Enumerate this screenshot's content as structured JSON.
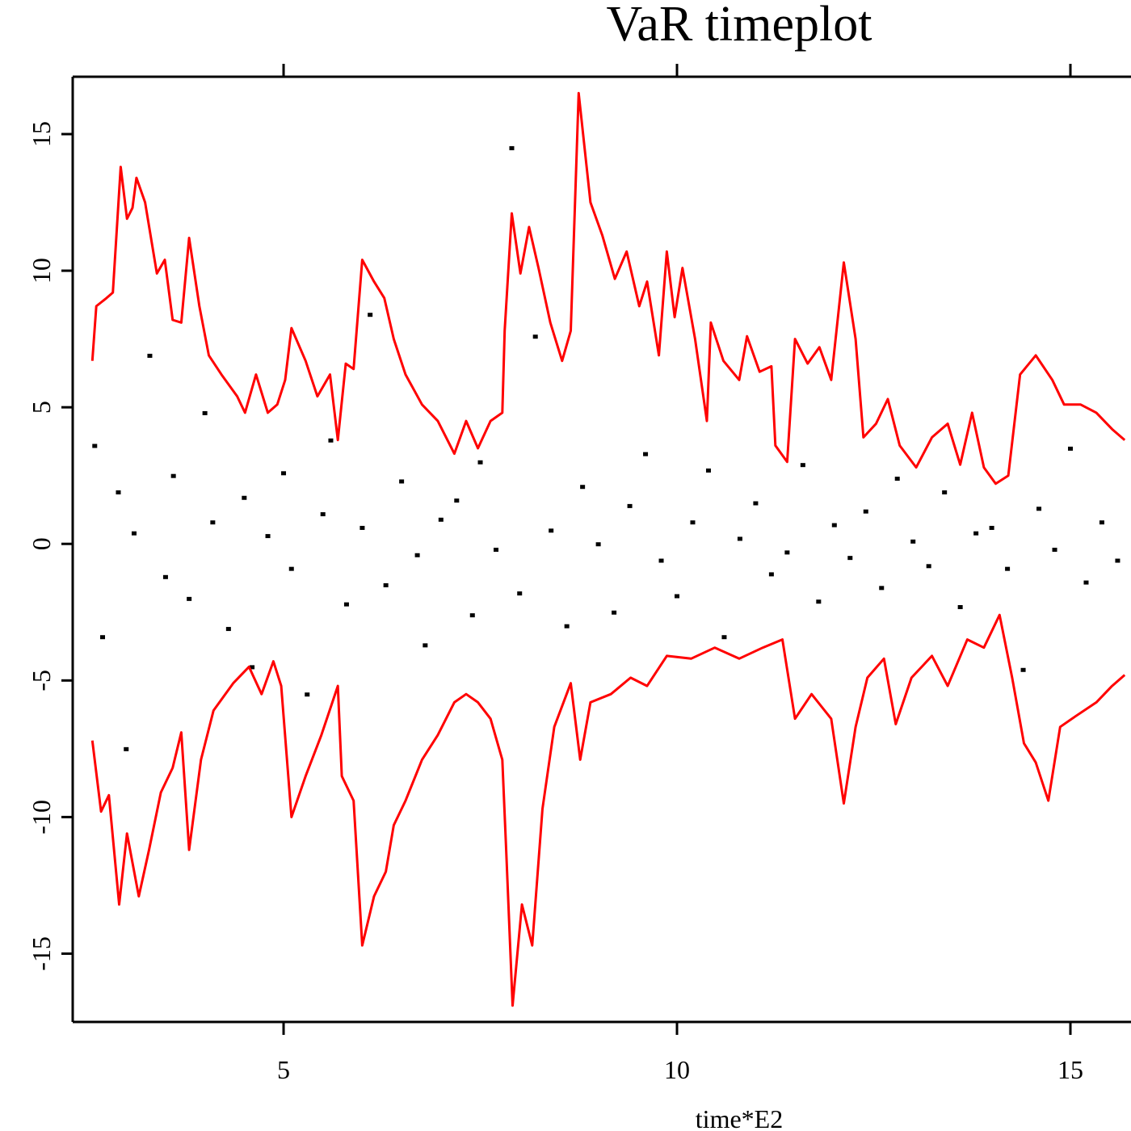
{
  "chart_data": {
    "type": "line",
    "title": "VaR timeplot",
    "xlabel": "time*E2",
    "xlim": [
      2.32,
      15.77
    ],
    "ylim": [
      -17.5,
      17.1
    ],
    "xticks": [
      5,
      10,
      15
    ],
    "yticks": [
      -15,
      -10,
      -5,
      0,
      5,
      10,
      15
    ],
    "series": [
      {
        "color": "#ff0000",
        "x": [
          2.57,
          2.62,
          2.75,
          2.83,
          2.93,
          3.01,
          3.08,
          3.13,
          3.24,
          3.39,
          3.49,
          3.59,
          3.7,
          3.8,
          3.93,
          4.05,
          4.21,
          4.41,
          4.51,
          4.65,
          4.8,
          4.92,
          5.02,
          5.1,
          5.28,
          5.43,
          5.59,
          5.69,
          5.79,
          5.89,
          6.0,
          6.15,
          6.28,
          6.4,
          6.55,
          6.76,
          6.96,
          7.17,
          7.32,
          7.47,
          7.63,
          7.78,
          7.81,
          7.9,
          8.01,
          8.12,
          8.24,
          8.39,
          8.54,
          8.65,
          8.75,
          8.9,
          9.05,
          9.21,
          9.36,
          9.52,
          9.62,
          9.77,
          9.87,
          9.97,
          10.07,
          10.23,
          10.38,
          10.43,
          10.59,
          10.79,
          10.89,
          11.05,
          11.2,
          11.25,
          11.4,
          11.5,
          11.66,
          11.81,
          11.96,
          12.12,
          12.27,
          12.37,
          12.53,
          12.68,
          12.83,
          13.04,
          13.24,
          13.44,
          13.6,
          13.75,
          13.9,
          14.05,
          14.21,
          14.36,
          14.56,
          14.77,
          14.92,
          15.13,
          15.33,
          15.53,
          15.69
        ],
        "values": [
          6.7,
          8.7,
          9.0,
          9.2,
          13.8,
          11.9,
          12.3,
          13.4,
          12.5,
          9.9,
          10.4,
          8.2,
          8.1,
          11.2,
          8.7,
          6.9,
          6.2,
          5.4,
          4.8,
          6.2,
          4.8,
          5.1,
          6.0,
          7.9,
          6.7,
          5.4,
          6.2,
          3.8,
          6.6,
          6.4,
          10.4,
          9.6,
          9.0,
          7.5,
          6.2,
          5.1,
          4.5,
          3.3,
          4.5,
          3.5,
          4.5,
          4.8,
          7.8,
          12.1,
          9.9,
          11.6,
          10.1,
          8.1,
          6.7,
          7.8,
          16.5,
          12.5,
          11.3,
          9.7,
          10.7,
          8.7,
          9.6,
          6.9,
          10.7,
          8.3,
          10.1,
          7.5,
          4.5,
          8.1,
          6.7,
          6.0,
          7.6,
          6.3,
          6.5,
          3.6,
          3.0,
          7.5,
          6.6,
          7.2,
          6.0,
          10.3,
          7.5,
          3.9,
          4.4,
          5.3,
          3.6,
          2.8,
          3.9,
          4.4,
          2.9,
          4.8,
          2.8,
          2.2,
          2.5,
          6.2,
          6.9,
          6.0,
          5.1,
          5.1,
          4.8,
          4.2,
          3.8
        ]
      },
      {
        "color": "#ff0000",
        "x": [
          2.57,
          2.68,
          2.78,
          2.91,
          3.01,
          3.16,
          3.29,
          3.44,
          3.59,
          3.7,
          3.8,
          3.95,
          4.11,
          4.36,
          4.56,
          4.72,
          4.87,
          4.97,
          5.1,
          5.28,
          5.48,
          5.69,
          5.74,
          5.89,
          6.0,
          6.15,
          6.3,
          6.4,
          6.55,
          6.76,
          6.96,
          7.17,
          7.32,
          7.47,
          7.63,
          7.78,
          7.83,
          7.91,
          8.03,
          8.16,
          8.29,
          8.44,
          8.65,
          8.77,
          8.9,
          9.16,
          9.41,
          9.62,
          9.87,
          10.18,
          10.48,
          10.79,
          11.09,
          11.34,
          11.5,
          11.71,
          11.96,
          12.12,
          12.27,
          12.42,
          12.63,
          12.78,
          12.98,
          13.24,
          13.44,
          13.69,
          13.9,
          14.1,
          14.26,
          14.41,
          14.56,
          14.72,
          14.87,
          15.07,
          15.33,
          15.53,
          15.69
        ],
        "values": [
          -7.2,
          -9.8,
          -9.2,
          -13.2,
          -10.6,
          -12.9,
          -11.2,
          -9.1,
          -8.2,
          -6.9,
          -11.2,
          -7.9,
          -6.1,
          -5.1,
          -4.5,
          -5.5,
          -4.3,
          -5.2,
          -10.0,
          -8.5,
          -7.0,
          -5.2,
          -8.5,
          -9.4,
          -14.7,
          -12.9,
          -12.0,
          -10.3,
          -9.4,
          -7.9,
          -7.0,
          -5.8,
          -5.5,
          -5.8,
          -6.4,
          -7.9,
          -11.3,
          -16.9,
          -13.2,
          -14.7,
          -9.7,
          -6.7,
          -5.1,
          -7.9,
          -5.8,
          -5.5,
          -4.9,
          -5.2,
          -4.1,
          -4.2,
          -3.8,
          -4.2,
          -3.8,
          -3.5,
          -6.4,
          -5.5,
          -6.4,
          -9.5,
          -6.7,
          -4.9,
          -4.2,
          -6.6,
          -4.9,
          -4.1,
          -5.2,
          -3.5,
          -3.8,
          -2.6,
          -4.9,
          -7.3,
          -8.0,
          -9.4,
          -6.7,
          -6.3,
          -5.8,
          -5.2,
          -4.8
        ]
      }
    ],
    "points": {
      "color": "#000000",
      "x": [
        2.6,
        2.7,
        2.9,
        3.0,
        3.1,
        3.3,
        3.5,
        3.6,
        3.8,
        4.0,
        4.1,
        4.3,
        4.5,
        4.6,
        4.8,
        5.0,
        5.1,
        5.3,
        5.5,
        5.6,
        5.8,
        6.0,
        6.1,
        6.3,
        6.5,
        6.7,
        6.8,
        7.0,
        7.2,
        7.4,
        7.5,
        7.7,
        7.9,
        8.0,
        8.2,
        8.4,
        8.6,
        8.8,
        9.0,
        9.2,
        9.4,
        9.6,
        9.8,
        10.0,
        10.2,
        10.4,
        10.6,
        10.8,
        11.0,
        11.2,
        11.4,
        11.6,
        11.8,
        12.0,
        12.2,
        12.4,
        12.6,
        12.8,
        13.0,
        13.2,
        13.4,
        13.6,
        13.8,
        14.0,
        14.2,
        14.4,
        14.6,
        14.8,
        15.0,
        15.2,
        15.4,
        15.6
      ],
      "values": [
        3.6,
        -3.4,
        1.9,
        -7.5,
        0.4,
        6.9,
        -1.2,
        2.5,
        -2.0,
        4.8,
        0.8,
        -3.1,
        1.7,
        -4.5,
        0.3,
        2.6,
        -0.9,
        -5.5,
        1.1,
        3.8,
        -2.2,
        0.6,
        8.4,
        -1.5,
        2.3,
        -0.4,
        -3.7,
        0.9,
        1.6,
        -2.6,
        3.0,
        -0.2,
        14.5,
        -1.8,
        7.6,
        0.5,
        -3.0,
        2.1,
        0.0,
        -2.5,
        1.4,
        3.3,
        -0.6,
        -1.9,
        0.8,
        2.7,
        -3.4,
        0.2,
        1.5,
        -1.1,
        -0.3,
        2.9,
        -2.1,
        0.7,
        -0.5,
        1.2,
        -1.6,
        2.4,
        0.1,
        -0.8,
        1.9,
        -2.3,
        0.4,
        0.6,
        -0.9,
        -4.6,
        1.3,
        -0.2,
        3.5,
        -1.4,
        0.8,
        -0.6
      ]
    }
  }
}
